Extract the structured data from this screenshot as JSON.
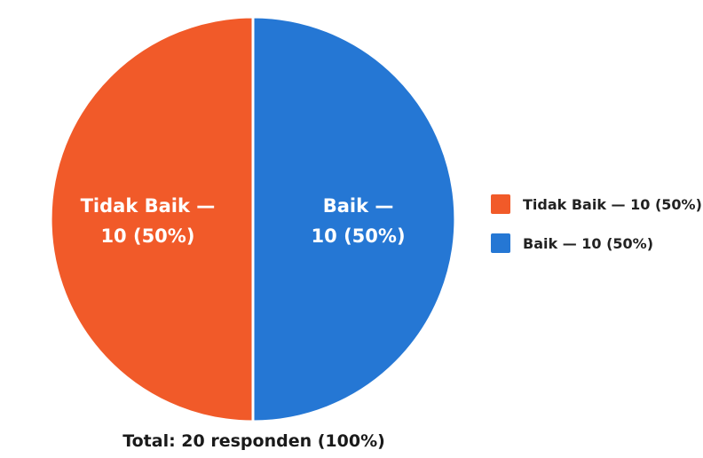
{
  "chart_data": {
    "type": "pie",
    "categories": [
      "Tidak Baik",
      "Baik"
    ],
    "values": [
      10,
      10
    ],
    "percentages": [
      50,
      50
    ],
    "colors": [
      "#F15A29",
      "#2577D4"
    ],
    "slice_labels": [
      [
        "Tidak Baik —",
        "10 (50%)"
      ],
      [
        "Baik —",
        "10 (50%)"
      ]
    ],
    "legend": {
      "position": "right",
      "items": [
        "Tidak Baik — 10 (50%)",
        "Baik — 10 (50%)"
      ]
    },
    "footer": "Total: 20 responden (100%)"
  }
}
